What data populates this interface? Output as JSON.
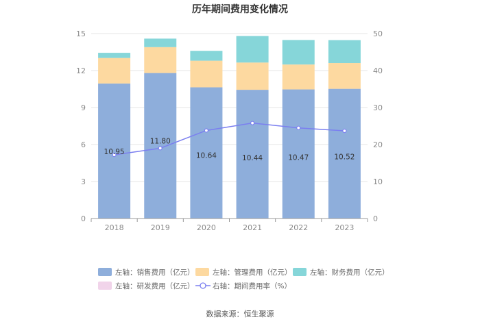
{
  "chart_data": {
    "type": "bar",
    "title": "历年期间费用变化情况",
    "categories": [
      "2018",
      "2019",
      "2020",
      "2021",
      "2022",
      "2023"
    ],
    "left_axis": {
      "ylim": [
        0,
        15
      ],
      "ticks": [
        "0",
        "3",
        "6",
        "9",
        "12",
        "15"
      ]
    },
    "right_axis": {
      "ylim": [
        0,
        50
      ],
      "ticks": [
        "0",
        "10",
        "20",
        "30",
        "40",
        "50"
      ]
    },
    "series": [
      {
        "name": "左轴：销售费用（亿元）",
        "axis": "left",
        "kind": "stacked-bar",
        "color": "#8eaedb",
        "values": [
          10.95,
          11.8,
          10.64,
          10.44,
          10.47,
          10.52
        ],
        "labels": [
          "10.95",
          "11.80",
          "10.64",
          "10.44",
          "10.47",
          "10.52"
        ]
      },
      {
        "name": "左轴：管理费用（亿元）",
        "axis": "left",
        "kind": "stacked-bar",
        "color": "#fdd9a0",
        "values": [
          2.07,
          2.1,
          2.16,
          2.21,
          2.02,
          2.09
        ]
      },
      {
        "name": "左轴：财务费用（亿元）",
        "axis": "left",
        "kind": "stacked-bar",
        "color": "#86d6d9",
        "values": [
          0.42,
          0.69,
          0.8,
          2.15,
          1.99,
          1.86
        ]
      },
      {
        "name": "左轴：研发费用（亿元）",
        "axis": "left",
        "kind": "stacked-bar",
        "color": "#f1d4ea",
        "values": [
          0,
          0,
          0,
          0,
          0,
          0
        ]
      },
      {
        "name": "右轴：期间费用率（%）",
        "axis": "right",
        "kind": "line",
        "color": "#7b7ff0",
        "values": [
          17.2,
          19.0,
          23.8,
          25.8,
          24.5,
          23.7
        ]
      }
    ],
    "legend_position": "bottom",
    "source": "数据来源：恒生聚源"
  }
}
